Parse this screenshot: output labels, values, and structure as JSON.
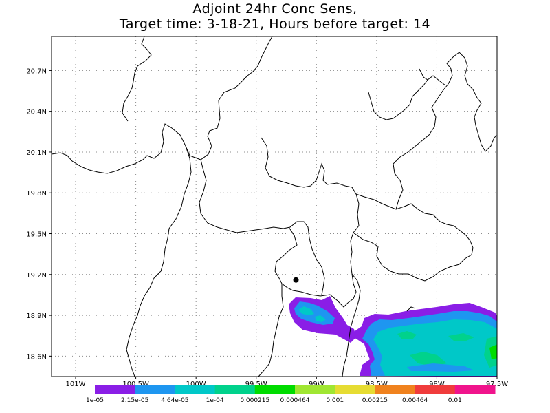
{
  "title": {
    "line1": "Adjoint 24hr Conc Sens,",
    "line2": "Target time: 3-18-21, Hours before target: 14"
  },
  "axes": {
    "lon_range": [
      -101.2,
      -97.5
    ],
    "lat_range": [
      18.45,
      20.95
    ],
    "y_ticks": [
      {
        "value": 20.7,
        "label": "20.7N"
      },
      {
        "value": 20.4,
        "label": "20.4N"
      },
      {
        "value": 20.1,
        "label": "20.1N"
      },
      {
        "value": 19.8,
        "label": "19.8N"
      },
      {
        "value": 19.5,
        "label": "19.5N"
      },
      {
        "value": 19.2,
        "label": "19.2N"
      },
      {
        "value": 18.9,
        "label": "18.9N"
      },
      {
        "value": 18.6,
        "label": "18.6N"
      }
    ],
    "x_ticks": [
      {
        "value": -101.0,
        "label": "101W"
      },
      {
        "value": -100.5,
        "label": "100.5W"
      },
      {
        "value": -100.0,
        "label": "100W"
      },
      {
        "value": -99.5,
        "label": "99.5W"
      },
      {
        "value": -99.0,
        "label": "99W"
      },
      {
        "value": -98.5,
        "label": "98.5W"
      },
      {
        "value": -98.0,
        "label": "98W"
      },
      {
        "value": -97.5,
        "label": "97.5W"
      }
    ],
    "grid": "dotted"
  },
  "target_point": {
    "lon": -99.17,
    "lat": 19.16
  },
  "colorbar": {
    "colors": [
      "#8a1ee6",
      "#1e96f0",
      "#00c8c8",
      "#00d28c",
      "#00dc00",
      "#a0e632",
      "#e6dc32",
      "#f0821e",
      "#f03c3c",
      "#f0148c"
    ],
    "labels": [
      "1e-05",
      "2.15e-05",
      "4.64e-05",
      "1e-04",
      "0.000215",
      "0.000464",
      "0.001",
      "0.00215",
      "0.00464",
      "0.01"
    ]
  },
  "colors": {
    "boundary": "#000000",
    "grid": "#8c8c8c"
  }
}
